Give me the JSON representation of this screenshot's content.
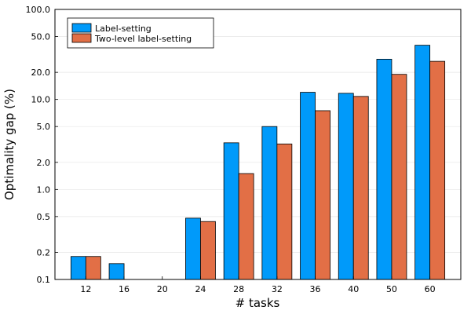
{
  "chart_data": {
    "type": "bar",
    "title": "",
    "xlabel": "# tasks",
    "ylabel": "Optimality gap (%)",
    "yscale": "log",
    "ylim": [
      0.1,
      100.0
    ],
    "yticks": [
      "0.1",
      "0.2",
      "0.5",
      "1.0",
      "2.0",
      "5.0",
      "10.0",
      "20.0",
      "50.0",
      "100.0"
    ],
    "ytick_values": [
      0.1,
      0.2,
      0.5,
      1.0,
      2.0,
      5.0,
      10.0,
      20.0,
      50.0,
      100.0
    ],
    "categories": [
      "12",
      "16",
      "20",
      "24",
      "28",
      "32",
      "36",
      "40",
      "50",
      "60"
    ],
    "series": [
      {
        "name": "Label-setting",
        "color": "#009AFA",
        "values": [
          0.18,
          0.15,
          null,
          0.48,
          3.3,
          5.0,
          12.0,
          11.7,
          28.0,
          40.0
        ]
      },
      {
        "name": "Two-level label-setting",
        "color": "#E26F46",
        "values": [
          0.18,
          null,
          null,
          0.44,
          1.5,
          3.2,
          7.5,
          10.8,
          19.0,
          26.5
        ]
      }
    ],
    "grid": true,
    "legend_position": "top-left"
  }
}
